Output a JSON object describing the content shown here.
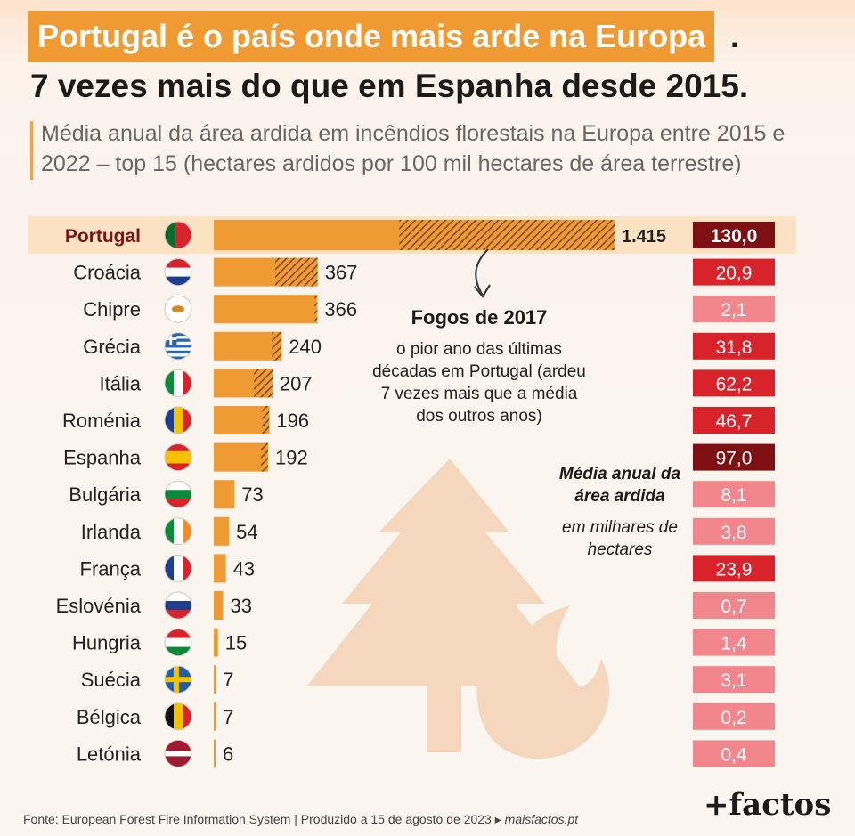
{
  "header": {
    "title_highlight": "Portugal é o país onde mais arde na Europa",
    "title_dot": ".",
    "title_line2": "7 vezes mais do que em Espanha desde 2015.",
    "subtitle": "Média anual da área ardida em incêndios florestais na Europa entre 2015 e 2022 – top 15 (hectares ardidos por 100 mil hectares de área terrestre)"
  },
  "annotation": {
    "title": "Fogos de 2017",
    "text": "o pior ano das últimas décadas em Portugal (ardeu 7 vezes mais que a média dos outros anos)"
  },
  "secondary_label": {
    "title": "Média anual da área ardida",
    "subtitle": "em milhares de hectares"
  },
  "footer": {
    "source": "Fonte: European Forest Fire Information System",
    "separator": "|",
    "produced": "Produzido a 15 de agosto de 2023",
    "arrow": "▸",
    "link": "maisfactos.pt"
  },
  "logo": {
    "text": "+factos"
  },
  "colors": {
    "bar": "#ef9a33",
    "highlight_row": "#fbe2c3",
    "box_dark": "#7e0f12",
    "box_red": "#d8232a",
    "box_pink": "#f2868d",
    "decor": "#f4d7bd"
  },
  "chart_data": {
    "type": "bar",
    "orientation": "horizontal",
    "legend": "none",
    "grid": false,
    "categories": [
      "Portugal",
      "Croácia",
      "Chipre",
      "Grécia",
      "Itália",
      "Roménia",
      "Espanha",
      "Bulgária",
      "Irlanda",
      "França",
      "Eslovénia",
      "Hungria",
      "Suécia",
      "Bélgica",
      "Letónia"
    ],
    "value_labels": [
      "1.415",
      "367",
      "366",
      "240",
      "207",
      "196",
      "192",
      "73",
      "54",
      "43",
      "33",
      "15",
      "7",
      "7",
      "6"
    ],
    "values": [
      1415,
      367,
      366,
      240,
      207,
      196,
      192,
      73,
      54,
      43,
      33,
      15,
      7,
      7,
      6
    ],
    "hatched_2017": [
      760,
      150,
      10,
      35,
      65,
      25,
      25,
      0,
      0,
      0,
      0,
      0,
      0,
      0,
      0
    ],
    "flag_icons": [
      "portugal-flag-icon",
      "croatia-flag-icon",
      "cyprus-flag-icon",
      "greece-flag-icon",
      "italy-flag-icon",
      "romania-flag-icon",
      "spain-flag-icon",
      "bulgaria-flag-icon",
      "ireland-flag-icon",
      "france-flag-icon",
      "slovenia-flag-icon",
      "hungary-flag-icon",
      "sweden-flag-icon",
      "belgium-flag-icon",
      "latvia-flag-icon"
    ],
    "secondary_series": {
      "values": [
        130.0,
        20.9,
        2.1,
        31.8,
        62.2,
        46.7,
        97.0,
        8.1,
        3.8,
        23.9,
        0.7,
        1.4,
        3.1,
        0.2,
        0.4
      ],
      "labels": [
        "130,0",
        "20,9",
        "2,1",
        "31,8",
        "62,2",
        "46,7",
        "97,0",
        "8,1",
        "3,8",
        "23,9",
        "0,7",
        "1,4",
        "3,1",
        "0,2",
        "0,4"
      ]
    }
  }
}
